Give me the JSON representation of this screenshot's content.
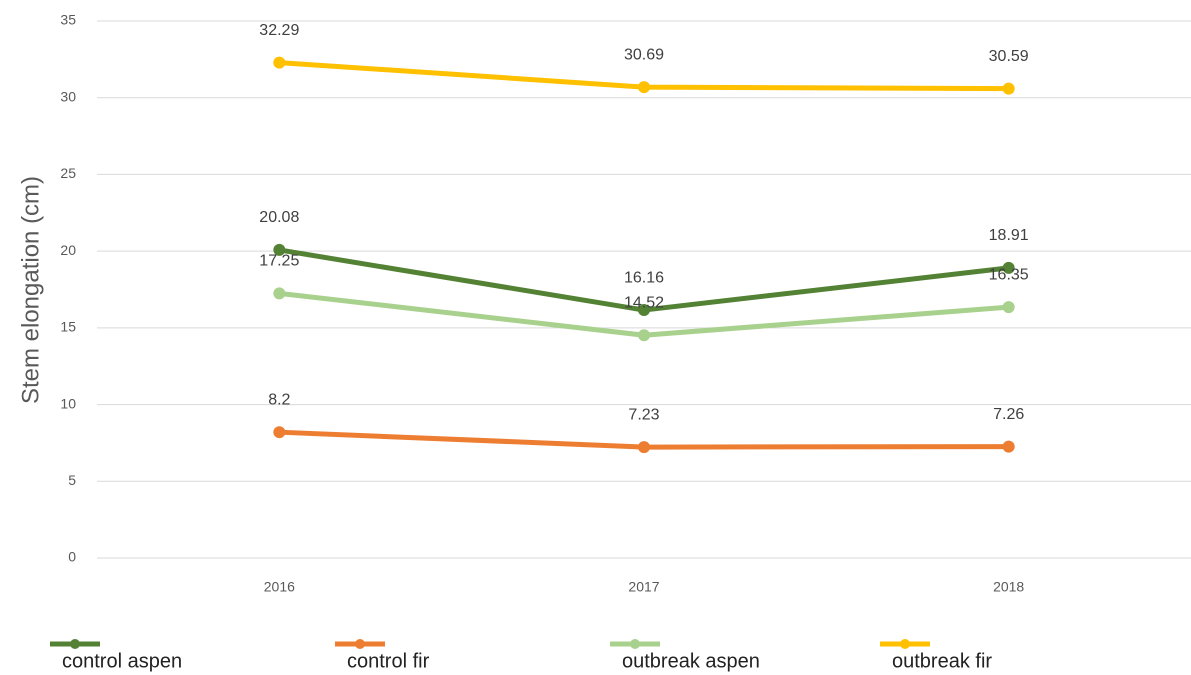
{
  "chart_data": {
    "type": "line",
    "y_label": "Stem elongation (cm)",
    "categories": [
      "2016",
      "2017",
      "2018"
    ],
    "series": [
      {
        "name": "control aspen",
        "color": "#548235",
        "values": [
          20.08,
          16.16,
          18.91
        ]
      },
      {
        "name": "control fir",
        "color": "#ed7d31",
        "values": [
          8.2,
          7.23,
          7.26
        ]
      },
      {
        "name": "outbreak aspen",
        "color": "#a9d18e",
        "values": [
          17.25,
          14.52,
          16.35
        ]
      },
      {
        "name": "outbreak fir",
        "color": "#ffc000",
        "values": [
          32.29,
          30.69,
          30.59
        ]
      }
    ],
    "ylim": [
      0,
      35
    ],
    "yticks": [
      0,
      5,
      10,
      15,
      20,
      25,
      30,
      35
    ],
    "grid": true,
    "legend": "bottom"
  }
}
